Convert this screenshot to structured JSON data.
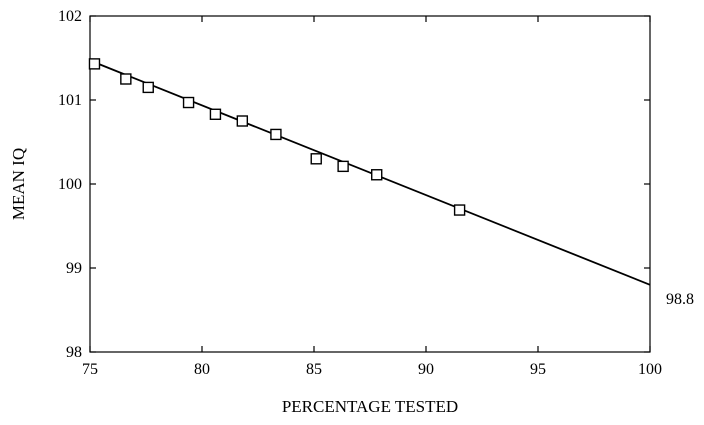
{
  "chart_data": {
    "type": "scatter",
    "title": "",
    "xlabel": "PERCENTAGE TESTED",
    "ylabel": "MEAN IQ",
    "xlim": [
      75,
      100
    ],
    "ylim": [
      98,
      102
    ],
    "x_ticks": [
      75,
      80,
      85,
      90,
      95,
      100
    ],
    "y_ticks": [
      98,
      99,
      100,
      101,
      102
    ],
    "grid": false,
    "legend": "none",
    "series": [
      {
        "marker": "open-square",
        "x": [
          75.2,
          76.6,
          77.6,
          79.4,
          80.6,
          81.8,
          83.3,
          85.1,
          86.3,
          87.8,
          91.5
        ],
        "y": [
          101.43,
          101.25,
          101.15,
          100.97,
          100.83,
          100.75,
          100.59,
          100.3,
          100.21,
          100.11,
          99.69
        ]
      }
    ],
    "fit_line": {
      "x": [
        75,
        100
      ],
      "y": [
        101.47,
        98.8
      ]
    },
    "annotations": [
      {
        "text": "98.8",
        "x": 100,
        "y": 98.8
      }
    ],
    "colors": {
      "foreground": "#000000",
      "background": "#ffffff"
    }
  }
}
